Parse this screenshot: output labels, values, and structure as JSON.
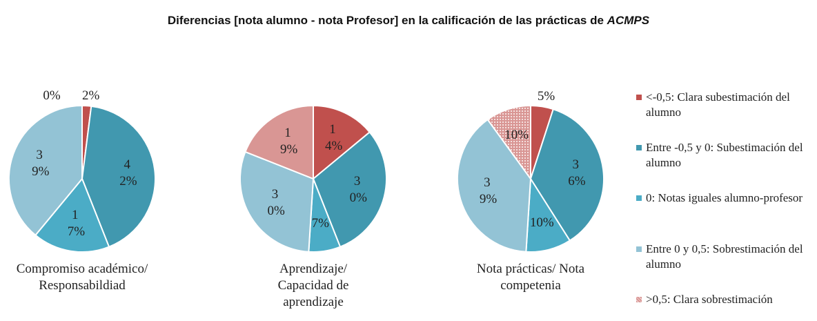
{
  "title": [
    "Diferencias [nota alumno - nota Profesor] en la calificación de las prácticas de",
    "ACMPS"
  ],
  "legend": {
    "categories": [
      "<-0,5: Clara subestimación del alumno",
      "Entre -0,5 y 0: Subestimación del alumno",
      "0: Notas iguales alumno-profesor",
      "Entre 0 y 0,5: Sobrestimación del alumno",
      ">0,5: Clara sobrestimación"
    ],
    "colors": [
      "#c0504d",
      "#4198af",
      "#4bacc6",
      "#93c3d5",
      "#d99694"
    ]
  },
  "chart_data": [
    {
      "type": "pie",
      "title": "Compromiso académico/ Responsabildiad",
      "values": [
        2,
        42,
        17,
        39,
        0
      ],
      "value_labels": [
        "2%",
        "42%",
        "17%",
        "39%",
        "0%"
      ]
    },
    {
      "type": "pie",
      "title": "Aprendizaje/ Capacidad de aprendizaje",
      "values": [
        14,
        30,
        7,
        30,
        19
      ],
      "value_labels": [
        "14%",
        "30%",
        "7%",
        "30%",
        "19%"
      ]
    },
    {
      "type": "pie",
      "title": "Nota prácticas/ Nota competenia",
      "values": [
        5,
        36,
        10,
        39,
        10
      ],
      "value_labels": [
        "5%",
        "36%",
        "10%",
        "39%",
        "10%"
      ],
      "patterned": [
        4
      ]
    }
  ]
}
